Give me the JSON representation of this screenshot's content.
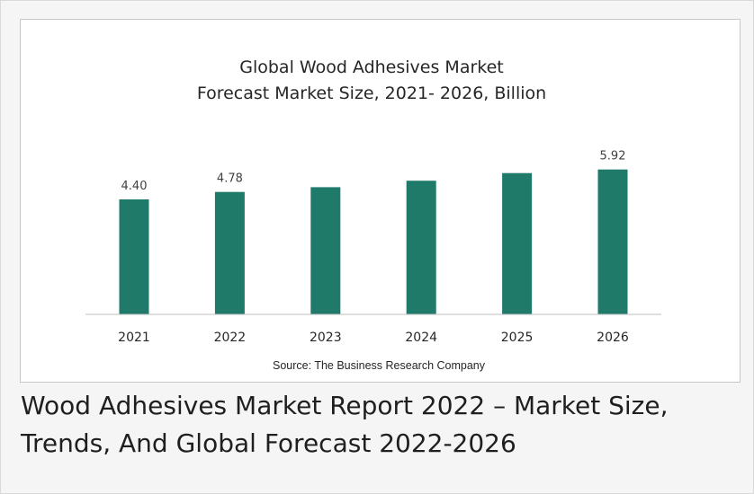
{
  "chart_data": {
    "type": "bar",
    "title_lines": [
      "Global Wood Adhesives Market",
      "Forecast Market Size, 2021- 2026, Billion"
    ],
    "categories": [
      "2021",
      "2022",
      "2023",
      "2024",
      "2025",
      "2026"
    ],
    "values": [
      4.4,
      4.78,
      5.02,
      5.35,
      5.74,
      5.92
    ],
    "data_labels": [
      "4.40",
      "4.78",
      "",
      "",
      "",
      "5.92"
    ],
    "bar_color": "#1f7a6a",
    "axis_color": "#bfbfbf",
    "source": "Source: The Business Research Company",
    "grid": false,
    "legend": "none"
  },
  "caption": "Wood Adhesives Market Report 2022 – Market Size, Trends, And Global Forecast 2022-2026"
}
